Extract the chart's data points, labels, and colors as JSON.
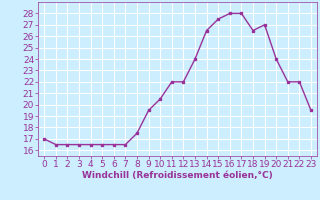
{
  "x": [
    0,
    1,
    2,
    3,
    4,
    5,
    6,
    7,
    8,
    9,
    10,
    11,
    12,
    13,
    14,
    15,
    16,
    17,
    18,
    19,
    20,
    21,
    22,
    23
  ],
  "y": [
    17.0,
    16.5,
    16.5,
    16.5,
    16.5,
    16.5,
    16.5,
    16.5,
    17.5,
    19.5,
    20.5,
    22.0,
    22.0,
    24.0,
    26.5,
    27.5,
    28.0,
    28.0,
    26.5,
    27.0,
    24.0,
    22.0,
    22.0,
    19.5
  ],
  "line_color": "#993399",
  "marker": "s",
  "marker_size": 2.0,
  "line_width": 1.0,
  "bg_color": "#cceeff",
  "grid_color": "#ffffff",
  "xlabel": "Windchill (Refroidissement éolien,°C)",
  "xlabel_color": "#993399",
  "tick_color": "#993399",
  "xlim": [
    -0.5,
    23.5
  ],
  "ylim": [
    15.5,
    29.0
  ],
  "yticks": [
    16,
    17,
    18,
    19,
    20,
    21,
    22,
    23,
    24,
    25,
    26,
    27,
    28
  ],
  "xticks": [
    0,
    1,
    2,
    3,
    4,
    5,
    6,
    7,
    8,
    9,
    10,
    11,
    12,
    13,
    14,
    15,
    16,
    17,
    18,
    19,
    20,
    21,
    22,
    23
  ],
  "font_size": 6.5
}
